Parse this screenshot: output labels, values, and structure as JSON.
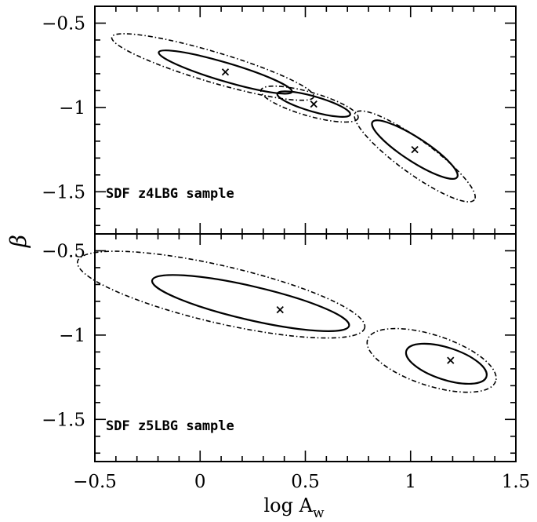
{
  "chart_data": [
    {
      "type": "scatter",
      "panel": "top",
      "annotation": "SDF z4LBG sample",
      "xlabel": "log A_w",
      "ylabel": "β",
      "xlim": [
        -0.5,
        1.5
      ],
      "ylim": [
        -1.75,
        -0.4
      ],
      "x_ticks": [
        -0.5,
        0,
        0.5,
        1,
        1.5
      ],
      "y_ticks": [
        -0.5,
        -1,
        -1.5
      ],
      "x_tick_labels": [
        "−0.5",
        "0",
        "0.5",
        "1",
        "1.5"
      ],
      "y_tick_labels": [
        "−0.5",
        "−1",
        "−1.5"
      ],
      "best_fits": [
        {
          "x": 0.12,
          "y": -0.79
        },
        {
          "x": 0.54,
          "y": -0.98
        },
        {
          "x": 1.02,
          "y": -1.25
        }
      ],
      "contours": [
        {
          "style": "solid",
          "center": [
            0.12,
            -0.79
          ],
          "angle_deg": 16.5,
          "rx": 0.33,
          "ry": 0.055
        },
        {
          "style": "dashed-dotted",
          "center": [
            0.06,
            -0.76
          ],
          "angle_deg": 16.5,
          "rx": 0.5,
          "ry": 0.09
        },
        {
          "style": "solid",
          "center": [
            0.54,
            -0.98
          ],
          "angle_deg": 16,
          "rx": 0.18,
          "ry": 0.045
        },
        {
          "style": "dashed-dotted",
          "center": [
            0.52,
            -0.98
          ],
          "angle_deg": 16,
          "rx": 0.24,
          "ry": 0.07
        },
        {
          "style": "solid",
          "center": [
            1.02,
            -1.25
          ],
          "angle_deg": 33,
          "rx": 0.24,
          "ry": 0.07
        },
        {
          "style": "dashed-dotted",
          "center": [
            1.02,
            -1.29
          ],
          "angle_deg": 36,
          "rx": 0.35,
          "ry": 0.1
        }
      ]
    },
    {
      "type": "scatter",
      "panel": "bottom",
      "annotation": "SDF z5LBG sample",
      "xlabel": "log A_w",
      "ylabel": "β",
      "xlim": [
        -0.5,
        1.5
      ],
      "ylim": [
        -1.75,
        -0.4
      ],
      "x_ticks": [
        -0.5,
        0,
        0.5,
        1,
        1.5
      ],
      "y_ticks": [
        -0.5,
        -1,
        -1.5
      ],
      "x_tick_labels": [
        "−0.5",
        "0",
        "0.5",
        "1",
        "1.5"
      ],
      "y_tick_labels": [
        "−0.5",
        "−1",
        "−1.5"
      ],
      "best_fits": [
        {
          "x": 0.38,
          "y": -0.85
        },
        {
          "x": 1.19,
          "y": -1.15
        }
      ],
      "contours": [
        {
          "style": "solid",
          "center": [
            0.24,
            -0.81
          ],
          "angle_deg": 13,
          "rx": 0.48,
          "ry": 0.1
        },
        {
          "style": "dashed-dotted",
          "center": [
            0.1,
            -0.76
          ],
          "angle_deg": 13,
          "rx": 0.7,
          "ry": 0.17
        },
        {
          "style": "solid",
          "center": [
            1.17,
            -1.17
          ],
          "angle_deg": 18,
          "rx": 0.2,
          "ry": 0.095
        },
        {
          "style": "dashed-dotted",
          "center": [
            1.1,
            -1.15
          ],
          "angle_deg": 18,
          "rx": 0.32,
          "ry": 0.15
        }
      ]
    }
  ],
  "axis_labels": {
    "x_main": "log A",
    "x_sub": "w",
    "y": "β"
  },
  "colors": {
    "line": "#000000",
    "background": "#ffffff"
  }
}
